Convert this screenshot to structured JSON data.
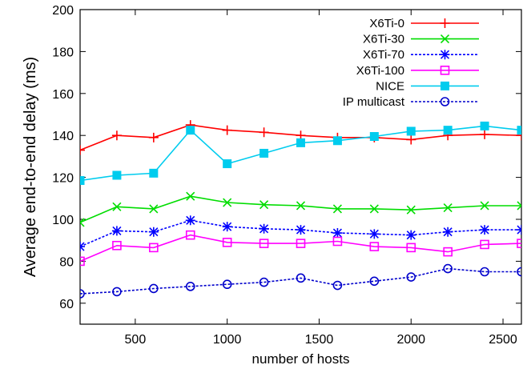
{
  "chart_data": {
    "type": "line",
    "title": "",
    "xlabel": "number of hosts",
    "ylabel": "Average end-to-end delay (ms)",
    "xlim": [
      200,
      2600
    ],
    "ylim": [
      50,
      200
    ],
    "xticks": [
      500,
      1000,
      1500,
      2000,
      2500
    ],
    "yticks": [
      60,
      80,
      100,
      120,
      140,
      160,
      180,
      200
    ],
    "grid": false,
    "legend_position": "top-right",
    "x": [
      200,
      400,
      600,
      800,
      1000,
      1200,
      1400,
      1600,
      1800,
      2000,
      2200,
      2400,
      2600
    ],
    "series": [
      {
        "name": "X6Ti-0",
        "color": "#ff0000",
        "marker": "plus",
        "dash": "solid",
        "values": [
          133,
          140,
          139,
          145,
          142.5,
          141.5,
          140,
          139,
          139,
          138,
          140,
          140.5,
          140
        ]
      },
      {
        "name": "X6Ti-30",
        "color": "#00dd00",
        "marker": "cross",
        "dash": "solid",
        "values": [
          98.5,
          106,
          105,
          111,
          108,
          107,
          106.5,
          105,
          105,
          104.5,
          105.5,
          106.5,
          106.5
        ]
      },
      {
        "name": "X6Ti-70",
        "color": "#0000ff",
        "marker": "star",
        "dash": "dashed",
        "values": [
          87,
          94.5,
          94,
          99.5,
          96.5,
          95.5,
          95,
          93.5,
          93,
          92.5,
          94,
          95,
          95
        ]
      },
      {
        "name": "X6Ti-100",
        "color": "#ff00ff",
        "marker": "square-open",
        "dash": "solid",
        "values": [
          80,
          87.5,
          86.5,
          92.5,
          89,
          88.5,
          88.5,
          89.5,
          87,
          86.5,
          84.5,
          88,
          88.5
        ]
      },
      {
        "name": "NICE",
        "color": "#00ccee",
        "marker": "square-filled",
        "dash": "solid",
        "values": [
          118.5,
          121,
          122,
          142.5,
          126.5,
          131.5,
          136.5,
          137.5,
          139.5,
          142,
          142.5,
          144.5,
          142.5
        ]
      },
      {
        "name": "IP multicast",
        "color": "#0000cc",
        "marker": "circle-open",
        "dash": "dashed",
        "values": [
          64.5,
          65.5,
          67,
          68,
          69,
          70,
          72,
          68.5,
          70.5,
          72.5,
          76.5,
          75,
          75
        ]
      }
    ]
  }
}
